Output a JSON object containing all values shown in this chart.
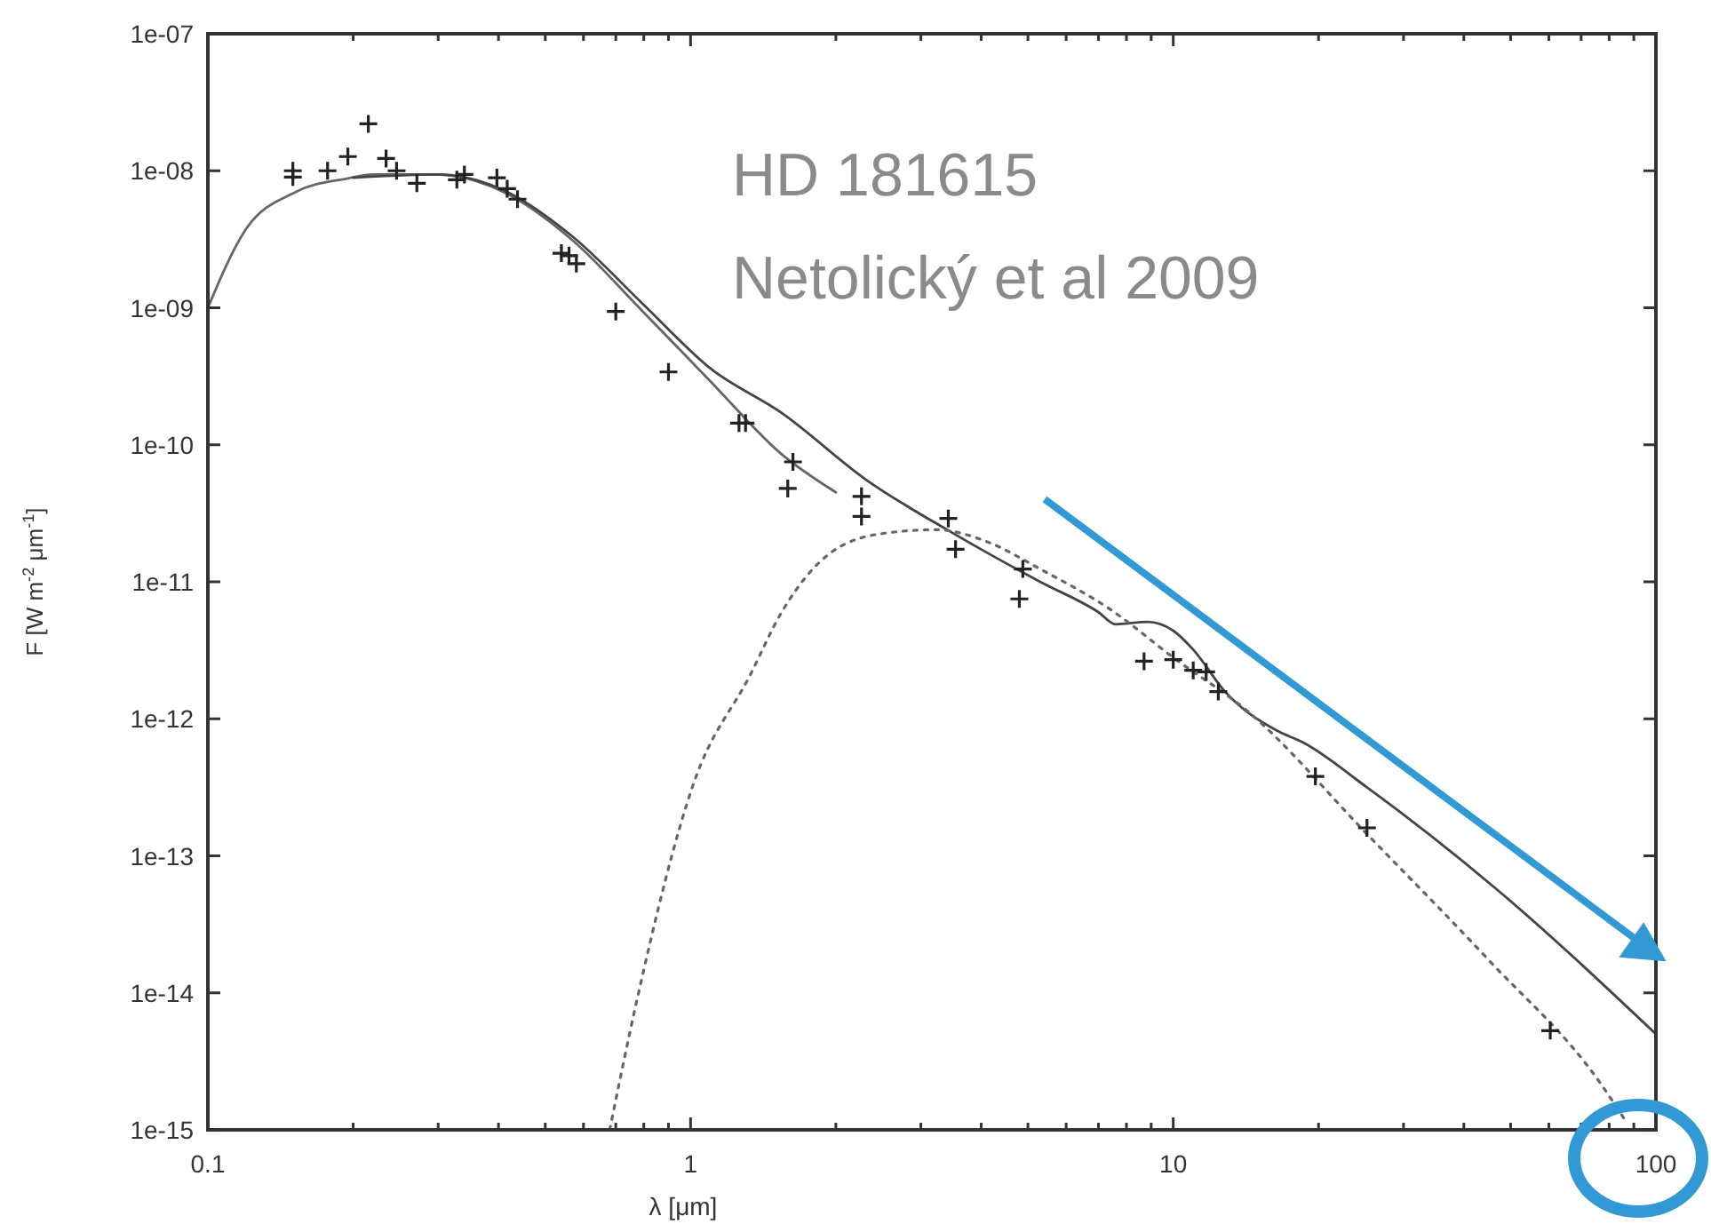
{
  "chart_data": {
    "type": "line",
    "xlabel": "λ [μm]",
    "ylabel": "F [W m$^{-2}$ μm$^{-1}$]",
    "annotations": [
      "HD 181615",
      "Netolický et al 2009"
    ],
    "log": "xy",
    "grid": false,
    "xlim": [
      0.1,
      100
    ],
    "ylim": [
      1e-15,
      1e-07
    ],
    "xticks": [
      0.1,
      {
        "value": 0.2,
        "label": null
      },
      {
        "value": 0.3,
        "label": null
      },
      {
        "value": 0.4,
        "label": null
      },
      {
        "value": 0.5,
        "label": null
      },
      {
        "value": 0.6,
        "label": null
      },
      {
        "value": 0.7,
        "label": null
      },
      {
        "value": 0.8,
        "label": null
      },
      {
        "value": 0.9,
        "label": null
      },
      1,
      {
        "value": 2,
        "label": null
      },
      {
        "value": 3,
        "label": null
      },
      {
        "value": 4,
        "label": null
      },
      {
        "value": 5,
        "label": null
      },
      {
        "value": 6,
        "label": null
      },
      {
        "value": 7,
        "label": null
      },
      {
        "value": 8,
        "label": null
      },
      {
        "value": 9,
        "label": null
      },
      10,
      {
        "value": 20,
        "label": null
      },
      {
        "value": 30,
        "label": null
      },
      {
        "value": 40,
        "label": null
      },
      {
        "value": 50,
        "label": null
      },
      {
        "value": 60,
        "label": null
      },
      {
        "value": 70,
        "label": null
      },
      {
        "value": 80,
        "label": null
      },
      {
        "value": 90,
        "label": null
      },
      100
    ],
    "yticks": [
      {
        "value": 1e-15,
        "label": "1e-15"
      },
      {
        "value": 1e-14,
        "label": "1e-14"
      },
      {
        "value": 1e-13,
        "label": "1e-13"
      },
      {
        "value": 1e-12,
        "label": "1e-12"
      },
      {
        "value": 1e-11,
        "label": "1e-11"
      },
      {
        "value": 1e-10,
        "label": "1e-10"
      },
      {
        "value": 1e-09,
        "label": "1e-09"
      },
      {
        "value": 1e-08,
        "label": "1e-08"
      },
      {
        "value": 1e-07,
        "label": "1e-07"
      }
    ],
    "series": [
      {
        "color": "#666666",
        "line_style": "solid",
        "x": [
          0.1,
          0.119,
          0.152,
          0.195,
          0.22,
          0.295,
          0.41,
          0.57,
          0.794,
          1.1,
          1.54,
          2.0
        ],
        "values": [
          1e-09,
          3.6e-09,
          7e-09,
          8.8e-09,
          9.4e-09,
          9.4e-09,
          7e-09,
          3.1e-09,
          9.5e-10,
          2.9e-10,
          8.6e-11,
          4.5e-11
        ]
      },
      {
        "color": "#444444",
        "line_style": "solid",
        "x": [
          0.2,
          0.3,
          0.41,
          0.57,
          0.8,
          1.1,
          1.54,
          2.32,
          3.5,
          5.3,
          7.0,
          7.6,
          8.85,
          10,
          11,
          12.8,
          16.4,
          18.6,
          25.2,
          46.5,
          100
        ],
        "values": [
          8.9e-09,
          9.4e-09,
          7.2e-09,
          3.3e-09,
          1.05e-09,
          3.6e-10,
          1.72e-10,
          5.5e-11,
          2.26e-11,
          1e-11,
          6e-12,
          4.9e-12,
          5.1e-12,
          4.4e-12,
          3.2e-12,
          1.58e-12,
          8.2e-13,
          6.7e-13,
          3.16e-13,
          5.8e-14,
          5e-15
        ]
      },
      {
        "color": "#666666",
        "line_style": "dotted",
        "x": [
          0.68,
          0.774,
          1.017,
          1.33,
          1.54,
          1.97,
          2.52,
          3.23,
          4.13,
          5.3,
          7.4,
          10,
          14.2,
          25.4,
          45,
          77,
          86
        ],
        "values": [
          1e-15,
          8.8e-15,
          3.45e-13,
          2.1e-12,
          5.9e-12,
          1.67e-11,
          2.26e-11,
          2.4e-11,
          1.95e-11,
          1.24e-11,
          6.3e-12,
          2.8e-12,
          1.15e-12,
          1.4e-13,
          1.74e-14,
          2.15e-15,
          1.2e-15
        ]
      },
      {
        "type": "scatter",
        "color": "#222222",
        "marker": "cross",
        "x": [
          0.15,
          0.15,
          0.177,
          0.195,
          0.215,
          0.234,
          0.246,
          0.271,
          0.328,
          0.34,
          0.397,
          0.417,
          0.438,
          0.54,
          0.56,
          0.58,
          0.7,
          0.9,
          1.26,
          1.3,
          1.63,
          1.59,
          2.26,
          2.26,
          3.42,
          3.54,
          4.88,
          4.8,
          8.7,
          10,
          11,
          11.7,
          12.4,
          19.7,
          25.2,
          60.4
        ],
        "values": [
          1e-08,
          9e-09,
          1e-08,
          1.27e-08,
          2.2e-08,
          1.23e-08,
          1e-08,
          8.1e-09,
          8.6e-09,
          9.4e-09,
          8.9e-09,
          7.4e-09,
          6.2e-09,
          2.5e-09,
          2.4e-09,
          2.1e-09,
          9.4e-10,
          3.4e-10,
          1.44e-10,
          1.44e-10,
          7.5e-11,
          4.8e-11,
          4.2e-11,
          3e-11,
          2.9e-11,
          1.73e-11,
          1.24e-11,
          7.5e-12,
          2.63e-12,
          2.7e-12,
          2.26e-12,
          2.2e-12,
          1.58e-12,
          3.8e-13,
          1.6e-13,
          5.3e-15
        ]
      }
    ]
  }
}
